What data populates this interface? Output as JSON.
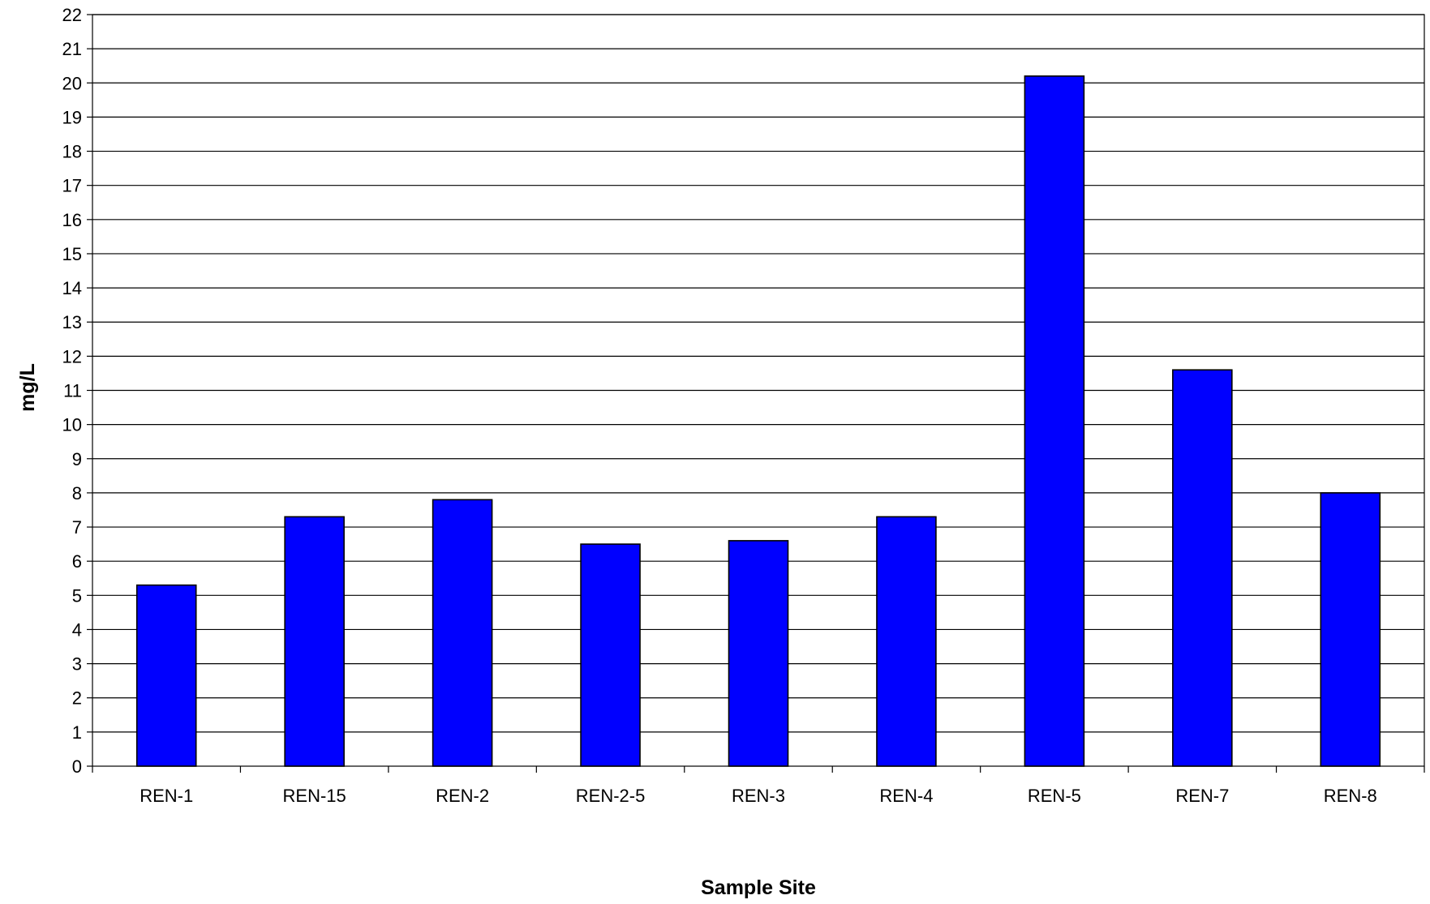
{
  "chart_data": {
    "type": "bar",
    "title": "",
    "xlabel": "Sample Site",
    "ylabel": "mg/L",
    "categories": [
      "REN-1",
      "REN-15",
      "REN-2",
      "REN-2-5",
      "REN-3",
      "REN-4",
      "REN-5",
      "REN-7",
      "REN-8"
    ],
    "values": [
      5.3,
      7.3,
      7.8,
      6.5,
      6.6,
      7.3,
      20.2,
      11.6,
      8.0
    ],
    "ylim": [
      0,
      22
    ],
    "yticks": [
      0,
      1,
      2,
      3,
      4,
      5,
      6,
      7,
      8,
      9,
      10,
      11,
      12,
      13,
      14,
      15,
      16,
      17,
      18,
      19,
      20,
      21,
      22
    ],
    "grid": true,
    "legend": "none",
    "bar_color": "#0000FF",
    "bar_edge_color": "#000000",
    "grid_color": "#000000"
  }
}
